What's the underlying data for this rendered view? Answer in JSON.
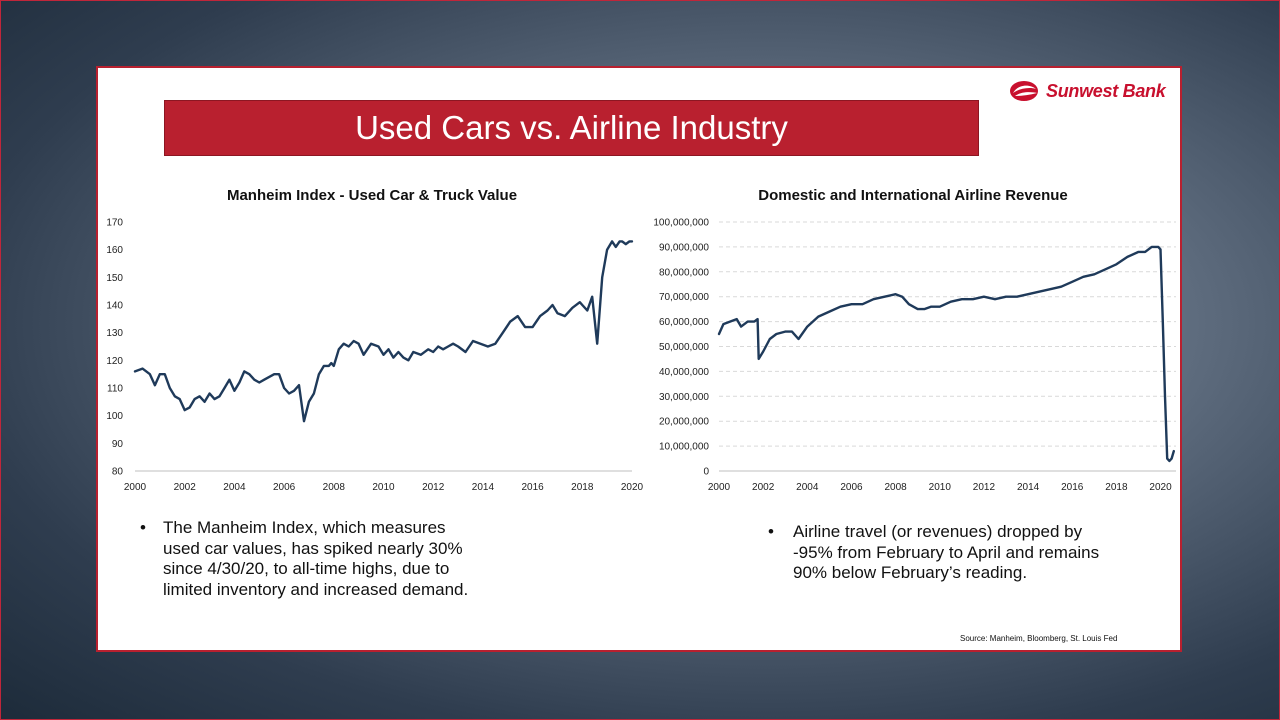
{
  "slide": {
    "title": "Used Cars vs. Airline Industry",
    "logo_text": "Sunwest Bank",
    "source": "Source: Manheim, Bloomberg, St. Louis Fed",
    "bullets": {
      "left": "The Manheim Index, which measures used car values, has spiked nearly 30% since 4/30/20, to all-time highs, due to limited inventory and increased demand.",
      "right": "Airline travel (or revenues) dropped by -95% from February to April and remains 90% below February’s reading."
    },
    "colors": {
      "accent": "#b9202f",
      "line": "#1f3a5a",
      "grid": "#d9d9d9"
    }
  },
  "chart_data": [
    {
      "type": "line",
      "title": "Manheim Index - Used Car & Truck Value",
      "xlabel": "",
      "ylabel": "",
      "ylim": [
        80,
        170
      ],
      "xlim": [
        2000,
        2020
      ],
      "yticks": [
        "80",
        "90",
        "100",
        "110",
        "120",
        "130",
        "140",
        "150",
        "160",
        "170"
      ],
      "xticks": [
        "2000",
        "2002",
        "2004",
        "2006",
        "2008",
        "2010",
        "2012",
        "2014",
        "2016",
        "2018",
        "2020"
      ],
      "grid": false,
      "series": [
        {
          "x": [
            2000.0,
            2000.3,
            2000.6,
            2000.8,
            2001.0,
            2001.2,
            2001.4,
            2001.6,
            2001.8,
            2002.0,
            2002.2,
            2002.4,
            2002.6,
            2002.8,
            2003.0,
            2003.2,
            2003.4,
            2003.6,
            2003.8,
            2004.0,
            2004.2,
            2004.4,
            2004.6,
            2004.8,
            2005.0,
            2005.2,
            2005.4,
            2005.6,
            2005.8,
            2006.0,
            2006.2,
            2006.4,
            2006.6,
            2006.8,
            2007.0,
            2007.2,
            2007.4,
            2007.6,
            2007.8,
            2007.9,
            2008.0,
            2008.2,
            2008.4,
            2008.6,
            2008.8,
            2009.0,
            2009.2,
            2009.5,
            2009.8,
            2010.0,
            2010.2,
            2010.4,
            2010.6,
            2010.8,
            2011.0,
            2011.2,
            2011.5,
            2011.8,
            2012.0,
            2012.2,
            2012.4,
            2012.6,
            2012.8,
            2013.0,
            2013.3,
            2013.6,
            2013.9,
            2014.2,
            2014.5,
            2014.8,
            2015.1,
            2015.4,
            2015.7,
            2016.0,
            2016.3,
            2016.6,
            2016.8,
            2017.0,
            2017.3,
            2017.6,
            2017.9,
            2018.0,
            2018.2,
            2018.4,
            2018.6,
            2018.8,
            2019.0,
            2019.2,
            2019.35,
            2019.5,
            2019.6,
            2019.75,
            2019.9,
            2020.0
          ],
          "values": [
            116,
            117,
            115,
            111,
            115,
            115,
            110,
            107,
            106,
            102,
            103,
            106,
            107,
            105,
            108,
            106,
            107,
            110,
            113,
            109,
            112,
            116,
            115,
            113,
            112,
            113,
            114,
            115,
            115,
            110,
            108,
            109,
            111,
            98,
            105,
            108,
            115,
            118,
            118,
            119,
            118,
            124,
            126,
            125,
            127,
            126,
            122,
            126,
            125,
            122,
            124,
            121,
            123,
            121,
            120,
            123,
            122,
            124,
            123,
            125,
            124,
            125,
            126,
            125,
            123,
            127,
            126,
            125,
            126,
            130,
            134,
            136,
            132,
            132,
            136,
            138,
            140,
            137,
            136,
            139,
            141,
            140,
            138,
            143,
            126,
            150,
            160,
            163,
            161,
            163,
            163,
            162,
            163,
            163
          ],
          "color": "#1f3a5a"
        }
      ]
    },
    {
      "type": "line",
      "title": "Domestic and International Airline Revenue",
      "xlabel": "",
      "ylabel": "",
      "ylim": [
        0,
        100000000
      ],
      "xlim": [
        2000,
        2020.7
      ],
      "yticks": [
        "0",
        "10,000,000",
        "20,000,000",
        "30,000,000",
        "40,000,000",
        "50,000,000",
        "60,000,000",
        "70,000,000",
        "80,000,000",
        "90,000,000",
        "100,000,000"
      ],
      "xticks": [
        "2000",
        "2002",
        "2004",
        "2006",
        "2008",
        "2010",
        "2012",
        "2014",
        "2016",
        "2018",
        "2020"
      ],
      "grid": true,
      "series": [
        {
          "x": [
            2000.0,
            2000.2,
            2000.5,
            2000.8,
            2001.0,
            2001.3,
            2001.6,
            2001.75,
            2001.8,
            2002.0,
            2002.3,
            2002.6,
            2003.0,
            2003.3,
            2003.6,
            2004.0,
            2004.5,
            2005.0,
            2005.5,
            2006.0,
            2006.5,
            2007.0,
            2007.5,
            2008.0,
            2008.3,
            2008.6,
            2009.0,
            2009.3,
            2009.6,
            2010.0,
            2010.5,
            2011.0,
            2011.5,
            2012.0,
            2012.5,
            2013.0,
            2013.5,
            2014.0,
            2014.5,
            2015.0,
            2015.5,
            2016.0,
            2016.5,
            2017.0,
            2017.5,
            2018.0,
            2018.5,
            2019.0,
            2019.3,
            2019.6,
            2019.9,
            2020.0,
            2020.1,
            2020.2,
            2020.3,
            2020.4,
            2020.5,
            2020.6
          ],
          "values": [
            55000000,
            59000000,
            60000000,
            61000000,
            58000000,
            60000000,
            60000000,
            61000000,
            45000000,
            48000000,
            53000000,
            55000000,
            56000000,
            56000000,
            53000000,
            58000000,
            62000000,
            64000000,
            66000000,
            67000000,
            67000000,
            69000000,
            70000000,
            71000000,
            70000000,
            67000000,
            65000000,
            65000000,
            66000000,
            66000000,
            68000000,
            69000000,
            69000000,
            70000000,
            69000000,
            70000000,
            70000000,
            71000000,
            72000000,
            73000000,
            74000000,
            76000000,
            78000000,
            79000000,
            81000000,
            83000000,
            86000000,
            88000000,
            88000000,
            90000000,
            90000000,
            89000000,
            60000000,
            30000000,
            5000000,
            4000000,
            5000000,
            8000000
          ],
          "color": "#1f3a5a"
        }
      ]
    }
  ]
}
